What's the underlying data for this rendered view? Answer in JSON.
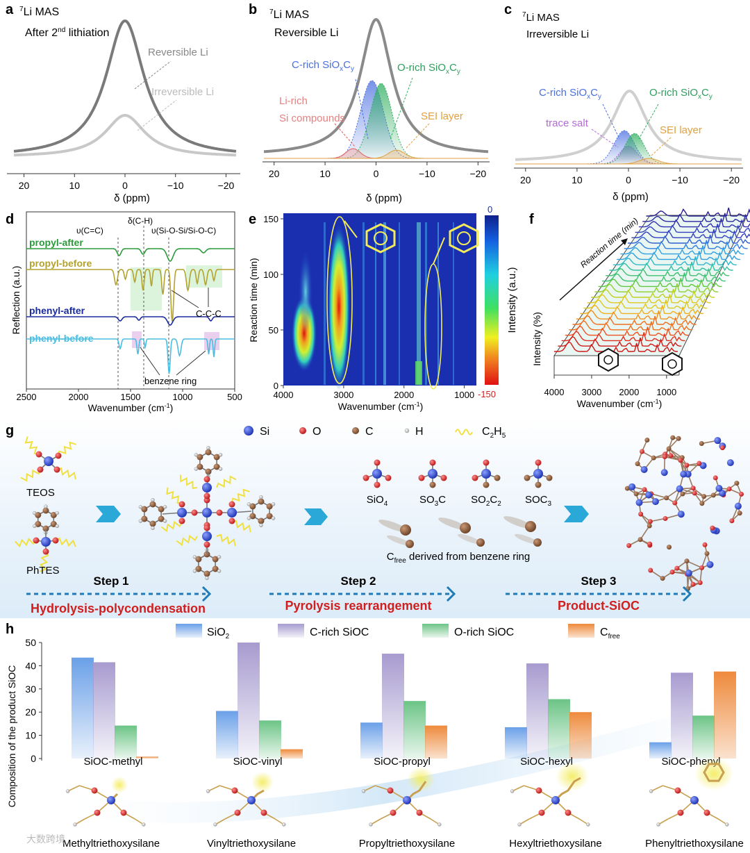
{
  "panels": {
    "a": {
      "letter": "a",
      "title_sup": "7",
      "title": "Li MAS",
      "subtitle_pre": "After 2",
      "subtitle_sup": "nd",
      "subtitle_post": " lithiation",
      "labels": [
        "Reversible Li",
        "Irreversible Li"
      ],
      "xlabel": "δ (ppm)",
      "xticks": [
        "20",
        "10",
        "0",
        "−10",
        "−20"
      ]
    },
    "b": {
      "letter": "b",
      "title_sup": "7",
      "title": "Li MAS",
      "subtitle": "Reversible Li",
      "labels": {
        "c_rich": "C-rich SiO",
        "o_rich": "O-rich SiO",
        "li_rich_1": "Li-rich",
        "li_rich_2": "Si compounds",
        "sei": "SEI layer"
      },
      "sub_x": "x",
      "sub_y": "y",
      "c_letter": "C",
      "xlabel": "δ (ppm)",
      "xticks": [
        "20",
        "10",
        "0",
        "−10",
        "−20"
      ]
    },
    "c": {
      "letter": "c",
      "title_sup": "7",
      "title": "Li MAS",
      "subtitle": "Irreversible Li",
      "labels": {
        "c_rich": "C-rich SiO",
        "o_rich": "O-rich SiO",
        "trace": "trace salt",
        "sei": "SEI layer"
      },
      "xlabel": "δ (ppm)",
      "xticks": [
        "20",
        "10",
        "0",
        "−10",
        "−20"
      ]
    },
    "d": {
      "letter": "d",
      "ylabel": "Reflection (a.u.)",
      "xlabel": "Wavenumber (cm",
      "xlabel_sup": "-1",
      "xlabel_end": ")",
      "xticks": [
        "2500",
        "2000",
        "1500",
        "1000",
        "500"
      ],
      "series": [
        "propyl-after",
        "propyl-before",
        "phenyl-after",
        "phenyl-before"
      ],
      "annotations": [
        "υ(C=C)",
        "δ(C-H)",
        "υ(Si-O-Si/Si-O-C)",
        "C-C-C",
        "benzene ring"
      ]
    },
    "e": {
      "letter": "e",
      "ylabel": "Reaction time (min)",
      "xlabel": "Wavenumber (cm",
      "xlabel_sup": "-1",
      "xlabel_end": ")",
      "xticks": [
        "4000",
        "3000",
        "2000",
        "1000"
      ],
      "yticks": [
        "0",
        "50",
        "100",
        "150"
      ],
      "colorbar_label": "Intensity (a.u.)",
      "colorbar_max": "0",
      "colorbar_min": "-150"
    },
    "f": {
      "letter": "f",
      "ylabel": "Intensity (%)",
      "arrow_label": "Reaction time (min)",
      "xlabel": "Wavenumber (cm",
      "xlabel_sup": "-1",
      "xlabel_end": ")",
      "xticks": [
        "4000",
        "3000",
        "2000",
        "1000"
      ]
    },
    "g": {
      "letter": "g",
      "legend": [
        "Si",
        "O",
        "C",
        "H",
        "C"
      ],
      "legend_c2h5_sub1": "2",
      "legend_c2h5_h": "H",
      "legend_c2h5_sub2": "5",
      "precursors": [
        "TEOS",
        "PhTES"
      ],
      "species": [
        "SiO",
        "SO",
        "SO",
        "SOC"
      ],
      "species_subs": [
        "4",
        "3",
        "2",
        "3"
      ],
      "species_c": [
        "",
        "C",
        "C",
        ""
      ],
      "species_c_subs": [
        "",
        "",
        "2",
        ""
      ],
      "cfree_pre": "C",
      "cfree_sub": "free",
      "cfree_post": " derived from benzene ring",
      "steps": [
        "Step 1",
        "Step 2",
        "Step 3"
      ],
      "step_names": [
        "Hydrolysis-polycondensation",
        "Pyrolysis rearrangement",
        "Product-SiOC"
      ]
    },
    "h": {
      "letter": "h",
      "ylabel": "Composition of the product SiOC",
      "legend_sio2": "SiO",
      "legend_sio2_sub": "2",
      "legend_crich": "C-rich SiOC",
      "legend_orich": "O-rich SiOC",
      "legend_cfree": "C",
      "legend_cfree_sub": "free",
      "molecules": [
        "Methyltriethoxysilane",
        "Vinyltriethoxysilane",
        "Propyltriethoxysilane",
        "Hexyltriethoxysilane",
        "Phenyltriethoxysilane"
      ]
    }
  },
  "chart_data": {
    "type": "bar",
    "categories": [
      "SiOC-methyl",
      "SiOC-vinyl",
      "SiOC-propyl",
      "SiOC-hexyl",
      "SiOC-phenyl"
    ],
    "ylim": [
      0,
      50
    ],
    "yticks": [
      0,
      10,
      20,
      30,
      40,
      50
    ],
    "ylabel": "Composition of the product SiOC",
    "series": [
      {
        "name": "SiO2",
        "color": "#6aa0e8",
        "values": [
          43.5,
          20.5,
          15.5,
          13.5,
          7
        ]
      },
      {
        "name": "C-rich SiOC",
        "color": "#a79bcf",
        "values": [
          41.5,
          50,
          45.2,
          41,
          37
        ]
      },
      {
        "name": "O-rich SiOC",
        "color": "#6cc486",
        "values": [
          14.2,
          16.4,
          24.8,
          25.6,
          18.5
        ]
      },
      {
        "name": "Cfree",
        "color": "#ee8a3c",
        "values": [
          0.8,
          4,
          14.2,
          20,
          37.5
        ]
      }
    ]
  },
  "watermark": "大数跨境",
  "colors": {
    "green": "#2a9a3a",
    "olive": "#b3a22d",
    "navy": "#1a2b9a",
    "cyan": "#4bbde0",
    "red": "#d01f1f",
    "blue_atom": "#2a45c8",
    "red_atom": "#d42a2a",
    "brown_atom": "#8a5a3a",
    "arrow": "#2aa8d8"
  }
}
